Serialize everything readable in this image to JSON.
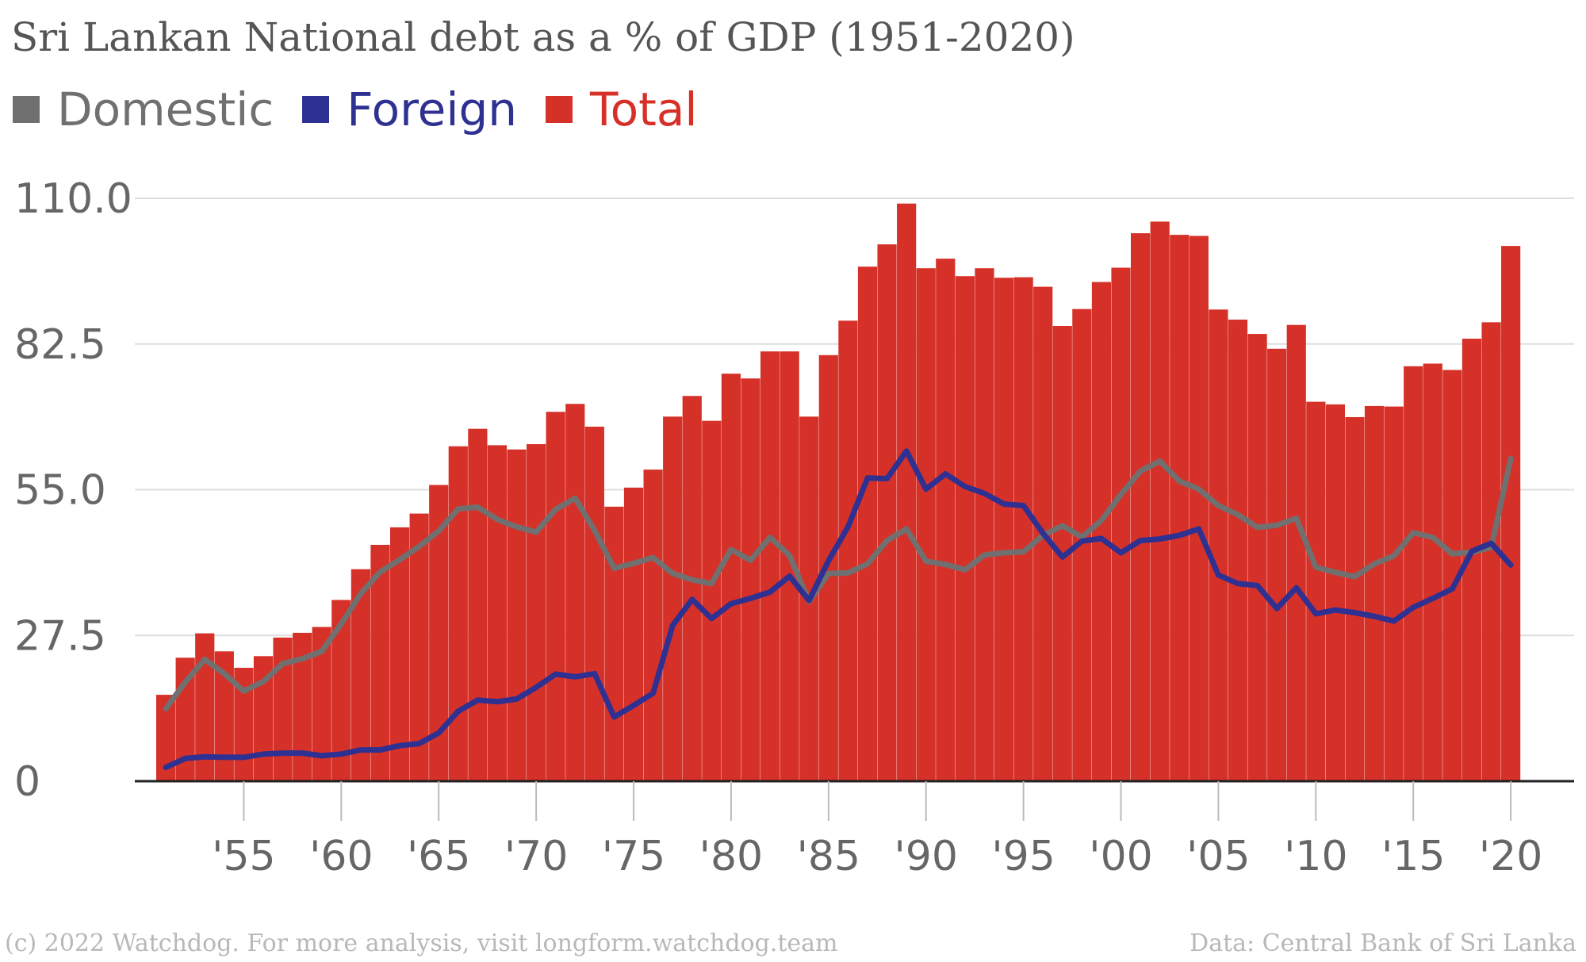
{
  "chart_data": {
    "type": "bar",
    "title": "Sri Lankan National debt as a % of GDP (1951-2020)",
    "xlabel": "",
    "ylabel": "",
    "ylim": [
      0,
      110
    ],
    "yticks": [
      "0",
      "27.5",
      "55.0",
      "82.5",
      "110.0"
    ],
    "ytick_values": [
      0,
      27.5,
      55,
      82.5,
      110
    ],
    "xticks": [
      "'55",
      "'60",
      "'65",
      "'70",
      "'75",
      "'80",
      "'85",
      "'90",
      "'95",
      "'00",
      "'05",
      "'10",
      "'15",
      "'20"
    ],
    "xtick_years": [
      1955,
      1960,
      1965,
      1970,
      1975,
      1980,
      1985,
      1990,
      1995,
      2000,
      2005,
      2010,
      2015,
      2020
    ],
    "legend_position": "top-left",
    "grid": true,
    "x": [
      1951,
      1952,
      1953,
      1954,
      1955,
      1956,
      1957,
      1958,
      1959,
      1960,
      1961,
      1962,
      1963,
      1964,
      1965,
      1966,
      1967,
      1968,
      1969,
      1970,
      1971,
      1972,
      1973,
      1974,
      1975,
      1976,
      1977,
      1978,
      1979,
      1980,
      1981,
      1982,
      1983,
      1984,
      1985,
      1986,
      1987,
      1988,
      1989,
      1990,
      1991,
      1992,
      1993,
      1994,
      1995,
      1996,
      1997,
      1998,
      1999,
      2000,
      2001,
      2002,
      2003,
      2004,
      2005,
      2006,
      2007,
      2008,
      2009,
      2010,
      2011,
      2012,
      2013,
      2014,
      2015,
      2016,
      2017,
      2018,
      2019,
      2020
    ],
    "series": [
      {
        "name": "Total",
        "kind": "bar",
        "color": "#d63128",
        "values": [
          16.3,
          23.3,
          27.9,
          24.5,
          21.4,
          23.6,
          27.1,
          28.0,
          29.1,
          34.2,
          40.0,
          44.6,
          47.9,
          50.5,
          55.9,
          63.2,
          66.5,
          63.4,
          62.6,
          63.6,
          69.7,
          71.2,
          66.9,
          51.8,
          55.4,
          58.8,
          68.8,
          72.7,
          68.0,
          76.9,
          76.0,
          81.1,
          81.1,
          68.8,
          80.4,
          86.9,
          97.1,
          101.3,
          109.0,
          96.8,
          98.6,
          95.3,
          96.8,
          95.0,
          95.1,
          93.3,
          85.9,
          89.1,
          94.2,
          96.9,
          103.4,
          105.6,
          103.1,
          102.9,
          89.0,
          87.1,
          84.4,
          81.6,
          86.1,
          71.6,
          71.1,
          68.7,
          70.8,
          70.7,
          78.3,
          78.8,
          77.6,
          83.5,
          86.6,
          101.0
        ]
      },
      {
        "name": "Domestic",
        "kind": "line",
        "color": "#707070",
        "values": [
          13.7,
          18.7,
          23.0,
          20.3,
          17.0,
          18.8,
          22.2,
          23.1,
          24.5,
          29.7,
          35.4,
          39.5,
          41.8,
          44.3,
          47.2,
          51.4,
          51.7,
          49.4,
          48.0,
          47.0,
          51.3,
          53.4,
          47.3,
          40.2,
          41.1,
          42.2,
          39.2,
          38.0,
          37.3,
          43.7,
          41.7,
          46.0,
          42.6,
          33.9,
          39.2,
          39.3,
          41.0,
          45.4,
          47.6,
          41.5,
          40.9,
          39.9,
          42.7,
          43.1,
          43.3,
          46.4,
          48.2,
          46.1,
          49.2,
          54.1,
          58.5,
          60.4,
          56.6,
          55.1,
          52.0,
          50.3,
          47.9,
          48.3,
          49.6,
          40.4,
          39.4,
          38.6,
          41.0,
          42.5,
          46.9,
          46.0,
          42.9,
          43.2,
          44.1,
          60.9
        ]
      },
      {
        "name": "Foreign",
        "kind": "line",
        "color": "#2e3191",
        "values": [
          2.6,
          4.3,
          4.6,
          4.5,
          4.5,
          5.1,
          5.3,
          5.3,
          4.8,
          5.1,
          5.9,
          5.9,
          6.7,
          7.1,
          9.1,
          13.2,
          15.3,
          15.0,
          15.5,
          17.7,
          20.2,
          19.7,
          20.3,
          12.1,
          14.3,
          16.6,
          29.4,
          34.3,
          30.7,
          33.5,
          34.5,
          35.7,
          38.7,
          34.1,
          41.6,
          48.0,
          57.2,
          57.1,
          62.3,
          55.1,
          58.0,
          55.6,
          54.3,
          52.3,
          52.0,
          46.8,
          42.3,
          45.3,
          45.8,
          43.1,
          45.4,
          45.7,
          46.4,
          47.6,
          38.9,
          37.3,
          36.9,
          32.6,
          36.5,
          31.6,
          32.3,
          31.8,
          31.1,
          30.2,
          32.8,
          34.5,
          36.3,
          43.4,
          44.9,
          40.8
        ]
      }
    ]
  },
  "legend": {
    "domestic": "Domestic",
    "foreign": "Foreign",
    "total": "Total"
  },
  "colors": {
    "total": "#d63128",
    "domestic": "#707070",
    "foreign": "#2e3191",
    "grid": "#dddddd",
    "axis": "#222222",
    "text": "#666666"
  },
  "footer": {
    "left": "(c) 2022 Watchdog. For more analysis, visit longform.watchdog.team",
    "right": "Data: Central Bank of Sri Lanka"
  }
}
